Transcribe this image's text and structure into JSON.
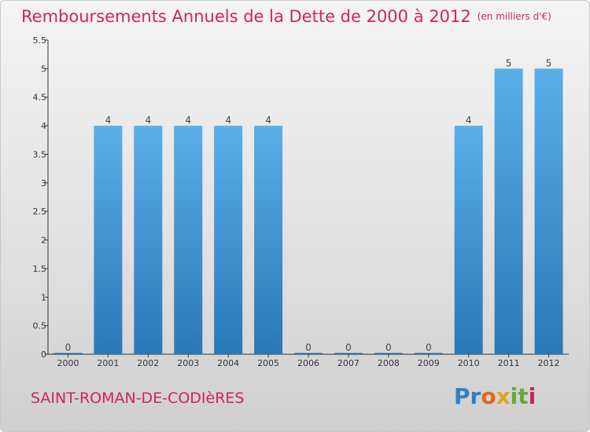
{
  "chart_data": {
    "type": "bar",
    "title": "Remboursements Annuels de la Dette de 2000 à 2012",
    "subtitle": "(en milliers d'€)",
    "xlabel": "",
    "ylabel": "",
    "categories": [
      "2000",
      "2001",
      "2002",
      "2003",
      "2004",
      "2005",
      "2006",
      "2007",
      "2008",
      "2009",
      "2010",
      "2011",
      "2012"
    ],
    "values": [
      0,
      4,
      4,
      4,
      4,
      4,
      0,
      0,
      0,
      0,
      4,
      5,
      5
    ],
    "value_labels": [
      "0",
      "4",
      "4",
      "4",
      "4",
      "4",
      "0",
      "0",
      "0",
      "0",
      "4",
      "5",
      "5"
    ],
    "ylim": [
      0,
      5.5
    ],
    "y_ticks": [
      {
        "value": 0,
        "label": "0"
      },
      {
        "value": 0.5,
        "label": "0.5"
      },
      {
        "value": 1,
        "label": "1"
      },
      {
        "value": 1.5,
        "label": "1.5"
      },
      {
        "value": 2,
        "label": "2"
      },
      {
        "value": 2.5,
        "label": "2.5"
      },
      {
        "value": 3,
        "label": "3"
      },
      {
        "value": 3.5,
        "label": "3.5"
      },
      {
        "value": 4,
        "label": "4"
      },
      {
        "value": 4.5,
        "label": "4.5"
      },
      {
        "value": 5,
        "label": "5"
      },
      {
        "value": 5.5,
        "label": "5.5"
      }
    ],
    "grid": false,
    "legend": "none",
    "bar_color_light": "#5aaee8",
    "bar_color_dark": "#2a78b8",
    "zero_bar_color": "#1f5f99"
  },
  "footer": {
    "commune": "SAINT-ROMAN-DE-CODIèRES"
  },
  "logo": {
    "parts": [
      "Pr",
      "o",
      "x",
      "it",
      "i"
    ],
    "colors": [
      "#2f7fc1",
      "#e8631d",
      "#e6a21c",
      "#6aa733",
      "#c2235a"
    ]
  },
  "colors": {
    "title": "#d2235e",
    "axis": "#333333"
  }
}
